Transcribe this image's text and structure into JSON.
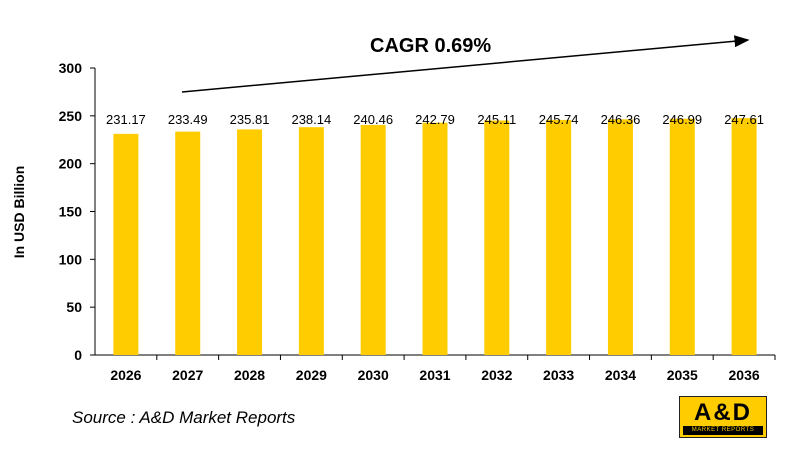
{
  "chart_data": {
    "type": "bar",
    "title": "",
    "annotation": "CAGR 0.69%",
    "xlabel": "",
    "ylabel": "In USD Billion",
    "categories": [
      "2026",
      "2027",
      "2028",
      "2029",
      "2030",
      "2031",
      "2032",
      "2033",
      "2034",
      "2035",
      "2036"
    ],
    "values": [
      231.17,
      233.49,
      235.81,
      238.14,
      240.46,
      242.79,
      245.11,
      245.74,
      246.36,
      246.99,
      247.61
    ],
    "value_labels": [
      "231.17",
      "233.49",
      "235.81",
      "238.14",
      "240.46",
      "242.79",
      "245.11",
      "245.74",
      "246.36",
      "246.99",
      "247.61"
    ],
    "ylim": [
      0,
      300
    ],
    "yticks": [
      "0",
      "50",
      "100",
      "150",
      "200",
      "250",
      "300"
    ],
    "grid": false,
    "bar_color": "#ffcc00"
  },
  "source": "Source : A&D Market Reports",
  "logo": {
    "mark": "A&D",
    "sub": "MARKET REPORTS",
    "color": "#ffcc00"
  }
}
